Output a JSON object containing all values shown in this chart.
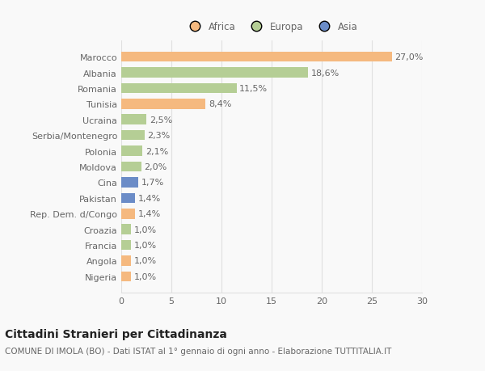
{
  "categories": [
    "Nigeria",
    "Angola",
    "Francia",
    "Croazia",
    "Rep. Dem. d/Congo",
    "Pakistan",
    "Cina",
    "Moldova",
    "Polonia",
    "Serbia/Montenegro",
    "Ucraina",
    "Tunisia",
    "Romania",
    "Albania",
    "Marocco"
  ],
  "values": [
    1.0,
    1.0,
    1.0,
    1.0,
    1.4,
    1.4,
    1.7,
    2.0,
    2.1,
    2.3,
    2.5,
    8.4,
    11.5,
    18.6,
    27.0
  ],
  "labels": [
    "1,0%",
    "1,0%",
    "1,0%",
    "1,0%",
    "1,4%",
    "1,4%",
    "1,7%",
    "2,0%",
    "2,1%",
    "2,3%",
    "2,5%",
    "8,4%",
    "11,5%",
    "18,6%",
    "27,0%"
  ],
  "colors": [
    "#f5b97f",
    "#f5b97f",
    "#b5ce95",
    "#b5ce95",
    "#f5b97f",
    "#6b8cc7",
    "#6b8cc7",
    "#b5ce95",
    "#b5ce95",
    "#b5ce95",
    "#b5ce95",
    "#f5b97f",
    "#b5ce95",
    "#b5ce95",
    "#f5b97f"
  ],
  "legend": [
    {
      "label": "Africa",
      "color": "#f5b97f"
    },
    {
      "label": "Europa",
      "color": "#b5ce95"
    },
    {
      "label": "Asia",
      "color": "#6b8cc7"
    }
  ],
  "xlim": [
    0,
    30
  ],
  "xticks": [
    0,
    5,
    10,
    15,
    20,
    25,
    30
  ],
  "title": "Cittadini Stranieri per Cittadinanza",
  "subtitle": "COMUNE DI IMOLA (BO) - Dati ISTAT al 1° gennaio di ogni anno - Elaborazione TUTTITALIA.IT",
  "background_color": "#f9f9f9",
  "grid_color": "#e0e0e0",
  "bar_height": 0.65,
  "label_fontsize": 8,
  "tick_fontsize": 8,
  "title_fontsize": 10,
  "subtitle_fontsize": 7.5
}
